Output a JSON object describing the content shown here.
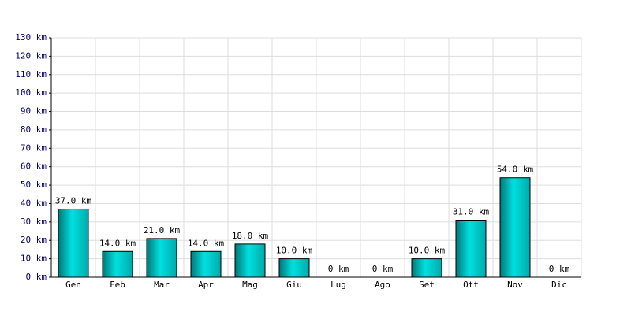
{
  "chart_data": {
    "type": "bar",
    "categories": [
      "Gen",
      "Feb",
      "Mar",
      "Apr",
      "Mag",
      "Giu",
      "Lug",
      "Ago",
      "Set",
      "Ott",
      "Nov",
      "Dic"
    ],
    "values": [
      37,
      14,
      21,
      14,
      18,
      10,
      0,
      0,
      10,
      31,
      54,
      0
    ],
    "value_labels": [
      "37.0 km",
      "14.0 km",
      "21.0 km",
      "14.0 km",
      "18.0 km",
      "10.0 km",
      "0 km",
      "0 km",
      "10.0 km",
      "31.0 km",
      "54.0 km",
      "0 km"
    ],
    "color": "#00e0e0",
    "ylim": [
      0,
      130
    ],
    "yticks": [
      {
        "value": 0,
        "label": "0 km"
      },
      {
        "value": 10,
        "label": "10 km"
      },
      {
        "value": 20,
        "label": "20 km"
      },
      {
        "value": 30,
        "label": "30 km"
      },
      {
        "value": 40,
        "label": "40 km"
      },
      {
        "value": 50,
        "label": "50 km"
      },
      {
        "value": 60,
        "label": "60 km"
      },
      {
        "value": 70,
        "label": "70 km"
      },
      {
        "value": 80,
        "label": "80 km"
      },
      {
        "value": 90,
        "label": "90 km"
      },
      {
        "value": 100,
        "label": "100 km"
      },
      {
        "value": 110,
        "label": "110 km"
      },
      {
        "value": 120,
        "label": "120 km"
      },
      {
        "value": 130,
        "label": "130 km"
      }
    ],
    "grid": true
  }
}
